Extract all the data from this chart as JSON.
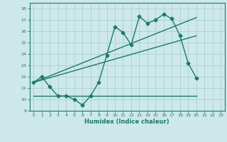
{
  "xlabel": "Humidex (Indice chaleur)",
  "bg_color": "#cce8e8",
  "line_color": "#1a7a6e",
  "xlim": [
    -0.5,
    23.5
  ],
  "ylim": [
    9,
    18.5
  ],
  "yticks": [
    9,
    10,
    11,
    12,
    13,
    14,
    15,
    16,
    17,
    18
  ],
  "xticks": [
    0,
    1,
    2,
    3,
    4,
    5,
    6,
    7,
    8,
    9,
    10,
    11,
    12,
    13,
    14,
    15,
    16,
    17,
    18,
    19,
    20,
    21,
    22,
    23
  ],
  "series1_x": [
    0,
    1,
    2,
    3,
    4,
    5,
    6,
    7,
    8,
    9,
    10,
    11,
    12,
    13,
    14,
    15,
    16,
    17,
    18,
    19,
    20
  ],
  "series1_y": [
    11.5,
    12.0,
    11.1,
    10.3,
    10.3,
    10.0,
    9.5,
    10.3,
    11.5,
    13.9,
    16.4,
    15.9,
    14.8,
    17.3,
    16.7,
    17.0,
    17.5,
    17.1,
    15.6,
    13.2,
    11.9
  ],
  "series2_x": [
    0,
    20
  ],
  "series2_y": [
    11.5,
    15.6
  ],
  "series3_x": [
    0,
    20
  ],
  "series3_y": [
    10.3,
    10.3
  ],
  "series4_x": [
    0,
    20
  ],
  "series4_y": [
    11.5,
    17.2
  ],
  "marker": "D",
  "markersize": 2.5,
  "linewidth": 1.0
}
